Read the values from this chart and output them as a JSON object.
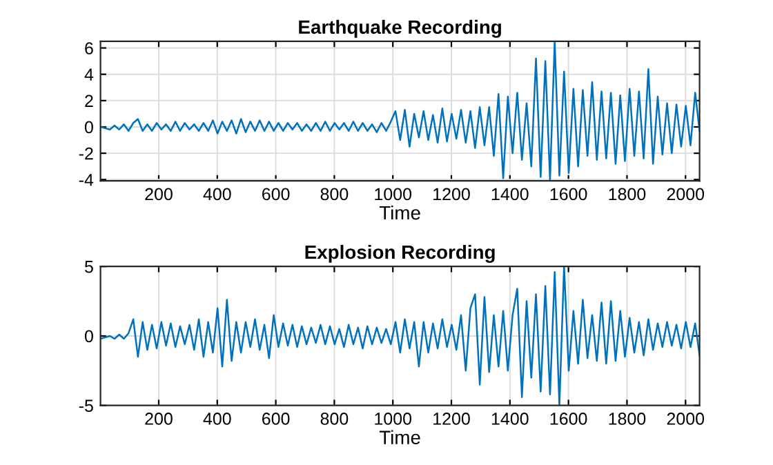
{
  "chart_data": [
    {
      "type": "line",
      "title": "Earthquake Recording",
      "xlabel": "Time",
      "x": [
        1,
        17,
        33,
        49,
        65,
        81,
        97,
        113,
        129,
        145,
        161,
        177,
        193,
        209,
        225,
        241,
        257,
        273,
        289,
        305,
        321,
        337,
        353,
        369,
        385,
        401,
        417,
        433,
        449,
        465,
        481,
        497,
        513,
        529,
        545,
        561,
        577,
        593,
        609,
        625,
        641,
        657,
        673,
        689,
        705,
        721,
        737,
        753,
        769,
        785,
        801,
        817,
        833,
        849,
        865,
        881,
        897,
        913,
        929,
        945,
        961,
        977,
        993,
        1009,
        1025,
        1041,
        1057,
        1073,
        1089,
        1105,
        1121,
        1137,
        1153,
        1169,
        1185,
        1201,
        1217,
        1233,
        1249,
        1265,
        1281,
        1297,
        1313,
        1329,
        1345,
        1361,
        1377,
        1393,
        1409,
        1425,
        1441,
        1457,
        1473,
        1489,
        1505,
        1521,
        1537,
        1553,
        1569,
        1585,
        1601,
        1617,
        1633,
        1649,
        1665,
        1681,
        1697,
        1713,
        1729,
        1745,
        1761,
        1777,
        1793,
        1809,
        1825,
        1841,
        1857,
        1873,
        1889,
        1905,
        1921,
        1937,
        1953,
        1969,
        1985,
        2001,
        2017,
        2033,
        2048
      ],
      "series": [
        {
          "color": "#0072bd",
          "values": [
            0,
            -0.1,
            -0.2,
            0.1,
            -0.2,
            0.2,
            -0.3,
            0.3,
            0.6,
            -0.3,
            0.2,
            -0.3,
            0.3,
            -0.2,
            0.2,
            -0.3,
            0.4,
            -0.3,
            0.3,
            -0.2,
            0.2,
            -0.3,
            0.3,
            -0.3,
            0.5,
            -0.5,
            0.4,
            -0.3,
            0.5,
            -0.5,
            0.6,
            -0.4,
            0.4,
            -0.3,
            0.5,
            -0.3,
            0.4,
            -0.3,
            0.3,
            -0.3,
            0.3,
            -0.2,
            0.3,
            -0.3,
            0.2,
            -0.3,
            0.3,
            -0.3,
            0.4,
            -0.3,
            0.3,
            -0.2,
            0.3,
            -0.3,
            0.4,
            -0.3,
            0.3,
            -0.3,
            0.2,
            -0.4,
            0.3,
            -0.3,
            0.4,
            1.2,
            -1.0,
            1.3,
            -1.5,
            1.0,
            -0.8,
            1.2,
            -1.0,
            0.9,
            -1.2,
            1.4,
            -1.1,
            1.0,
            -0.9,
            1.3,
            -1.2,
            1.2,
            -1.6,
            1.5,
            -1.4,
            1.5,
            -2.2,
            2.5,
            -3.9,
            2.3,
            -2.0,
            2.6,
            -2.5,
            1.8,
            -3.0,
            5.2,
            -3.8,
            5.0,
            -4.0,
            6.5,
            -3.7,
            4.2,
            -3.5,
            2.9,
            -3.0,
            2.8,
            -2.2,
            3.4,
            -2.5,
            2.7,
            -2.4,
            2.6,
            -2.8,
            2.4,
            -2.6,
            2.9,
            -2.2,
            2.7,
            -2.4,
            4.4,
            -2.8,
            2.3,
            -2.1,
            1.8,
            -2.0,
            1.7,
            -1.5,
            1.6,
            -1.4,
            2.6,
            -0.3
          ]
        }
      ],
      "xlim": [
        1,
        2048
      ],
      "xticks": [
        200,
        400,
        600,
        800,
        1000,
        1200,
        1400,
        1600,
        1800,
        2000
      ],
      "ylim": [
        -4.1,
        6.5
      ],
      "yticks": [
        -4,
        -2,
        0,
        2,
        4,
        6
      ],
      "grid": true,
      "marker": "none",
      "line_style": "solid"
    },
    {
      "type": "line",
      "title": "Explosion Recording",
      "xlabel": "Time",
      "x": [
        1,
        17,
        33,
        49,
        65,
        81,
        97,
        113,
        129,
        145,
        161,
        177,
        193,
        209,
        225,
        241,
        257,
        273,
        289,
        305,
        321,
        337,
        353,
        369,
        385,
        401,
        417,
        433,
        449,
        465,
        481,
        497,
        513,
        529,
        545,
        561,
        577,
        593,
        609,
        625,
        641,
        657,
        673,
        689,
        705,
        721,
        737,
        753,
        769,
        785,
        801,
        817,
        833,
        849,
        865,
        881,
        897,
        913,
        929,
        945,
        961,
        977,
        993,
        1009,
        1025,
        1041,
        1057,
        1073,
        1089,
        1105,
        1121,
        1137,
        1153,
        1169,
        1185,
        1201,
        1217,
        1233,
        1249,
        1265,
        1281,
        1297,
        1313,
        1329,
        1345,
        1361,
        1377,
        1393,
        1409,
        1425,
        1441,
        1457,
        1473,
        1489,
        1505,
        1521,
        1537,
        1553,
        1569,
        1585,
        1601,
        1617,
        1633,
        1649,
        1665,
        1681,
        1697,
        1713,
        1729,
        1745,
        1761,
        1777,
        1793,
        1809,
        1825,
        1841,
        1857,
        1873,
        1889,
        1905,
        1921,
        1937,
        1953,
        1969,
        1985,
        2001,
        2017,
        2033,
        2048
      ],
      "series": [
        {
          "color": "#0072bd",
          "values": [
            -0.2,
            -0.1,
            0,
            -0.2,
            0.1,
            -0.2,
            0.2,
            1.2,
            -1.5,
            1.0,
            -1.0,
            0.8,
            -0.9,
            1.0,
            -0.7,
            0.9,
            -0.8,
            0.7,
            -0.6,
            0.8,
            -1.0,
            1.2,
            -1.5,
            1.0,
            -1.2,
            2.0,
            -2.2,
            2.6,
            -1.8,
            1.0,
            -1.2,
            1.0,
            -0.8,
            1.2,
            -1.0,
            0.8,
            -1.6,
            1.5,
            -0.8,
            0.9,
            -0.7,
            0.8,
            -0.8,
            0.7,
            -0.6,
            0.6,
            -0.5,
            0.8,
            -0.6,
            0.7,
            -0.6,
            0.5,
            -0.8,
            0.8,
            -0.6,
            0.6,
            -0.9,
            0.7,
            -0.6,
            0.6,
            -0.5,
            0.5,
            -0.6,
            1.0,
            -1.2,
            1.2,
            -0.9,
            1.0,
            -2.2,
            1.0,
            -1.2,
            0.9,
            -0.9,
            1.2,
            -0.8,
            0.8,
            -1.0,
            1.5,
            -2.5,
            2.0,
            3.0,
            -3.5,
            2.8,
            -2.6,
            1.5,
            -2.2,
            1.8,
            -2.5,
            1.5,
            3.4,
            -4.4,
            2.5,
            -3.0,
            3.0,
            -4.0,
            3.6,
            -4.2,
            4.6,
            -5.0,
            5.0,
            -2.5,
            1.8,
            -2.0,
            2.6,
            -1.6,
            1.5,
            -1.8,
            2.4,
            -2.0,
            2.5,
            -1.8,
            1.8,
            -1.5,
            1.3,
            -1.2,
            1.0,
            -1.4,
            1.2,
            -1.0,
            0.9,
            -0.8,
            1.0,
            -0.7,
            0.8,
            -0.9,
            1.0,
            -0.8,
            0.9,
            -1.4
          ]
        }
      ],
      "xlim": [
        1,
        2048
      ],
      "xticks": [
        200,
        400,
        600,
        800,
        1000,
        1200,
        1400,
        1600,
        1800,
        2000
      ],
      "ylim": [
        -5,
        5
      ],
      "yticks": [
        -5,
        0,
        5
      ],
      "grid": true,
      "marker": "none",
      "line_style": "solid"
    }
  ]
}
